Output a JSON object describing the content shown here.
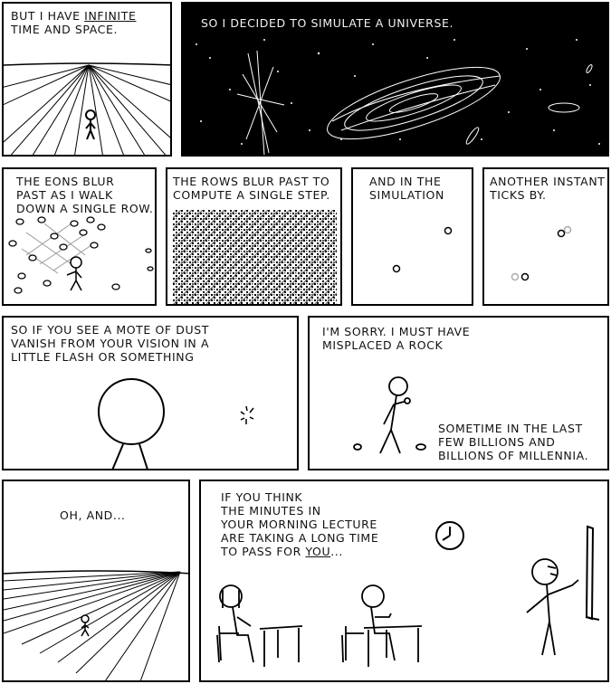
{
  "panels": {
    "p1": {
      "line1_a": "BUT I HAVE ",
      "line1_b": "INFINITE",
      "line2": "TIME AND SPACE."
    },
    "p2": {
      "text": "SO I DECIDED TO SIMULATE A UNIVERSE."
    },
    "p3": {
      "text": "THE EONS BLUR\nPAST AS I WALK\nDOWN A SINGLE ROW."
    },
    "p4": {
      "text": "THE ROWS BLUR PAST TO\nCOMPUTE A SINGLE STEP."
    },
    "p5": {
      "text": "AND IN THE\nSIMULATION"
    },
    "p6": {
      "text": "ANOTHER INSTANT\nTICKS BY."
    },
    "p7": {
      "text": "SO IF YOU SEE A MOTE OF DUST\nVANISH FROM YOUR VISION IN A\nLITTLE FLASH OR SOMETHING"
    },
    "p8": {
      "text": "I'M SORRY.  I MUST HAVE\nMISPLACED A ROCK",
      "aside": "SOMETIME IN THE LAST\nFEW BILLIONS AND\nBILLIONS OF MILLENNIA."
    },
    "p9": {
      "text": "OH, AND..."
    },
    "p10": {
      "line1": "IF YOU THINK",
      "line2": "THE MINUTES IN",
      "line3": "YOUR MORNING LECTURE",
      "line4": "ARE TAKING A LONG TIME",
      "line5_a": "TO PASS FOR ",
      "line5_b": "YOU",
      "line5_c": "..."
    }
  },
  "colors": {
    "ink": "#000000",
    "paper": "#ffffff",
    "space": "#000000"
  }
}
